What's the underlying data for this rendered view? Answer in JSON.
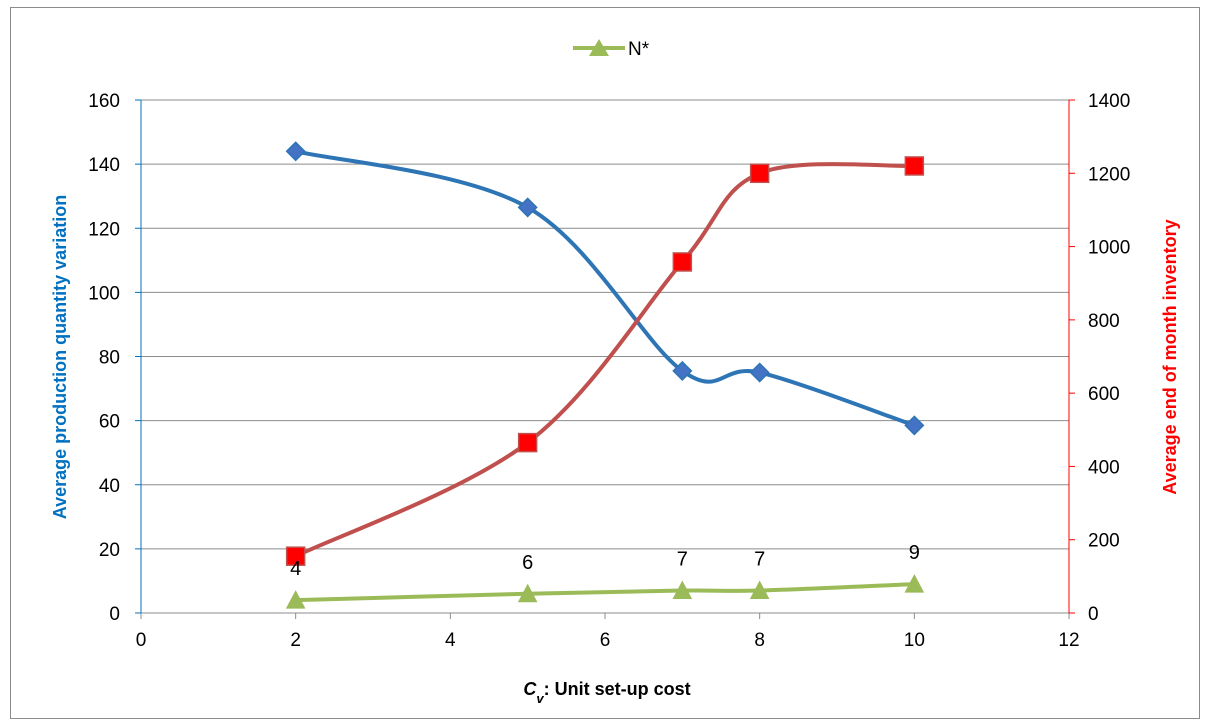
{
  "chart_data": {
    "type": "line",
    "title": "",
    "xlabel": {
      "symbol": "C",
      "subscript": "v",
      "text": ": Unit set-up cost"
    },
    "ylabel_left": "Average production quantity variation",
    "ylabel_right": "Average end of month inventory",
    "xlim": [
      0,
      12
    ],
    "xticks": [
      0,
      2,
      4,
      6,
      8,
      10,
      12
    ],
    "ylim_left": [
      0,
      160
    ],
    "yticks_left": [
      0,
      20,
      40,
      60,
      80,
      100,
      120,
      140,
      160
    ],
    "ylim_right": [
      0,
      1400
    ],
    "yticks_right": [
      0,
      200,
      400,
      600,
      800,
      1000,
      1200,
      1400
    ],
    "grid": "horizontal",
    "legend_position": "top",
    "series": [
      {
        "name": "",
        "axis": "left",
        "color": "#2e75b6",
        "marker": "diamond",
        "marker_color": "#4472c4",
        "smooth": true,
        "x": [
          2,
          5,
          7,
          8,
          10
        ],
        "y": [
          144,
          126.5,
          75.5,
          75,
          58.5
        ]
      },
      {
        "name": "",
        "axis": "right",
        "color": "#c0504d",
        "marker": "square",
        "marker_color": "#ff0000",
        "smooth": true,
        "x": [
          2,
          5,
          7,
          8,
          10
        ],
        "y": [
          155,
          465,
          958,
          1200,
          1220
        ]
      },
      {
        "name": "N*",
        "axis": "left",
        "color": "#9bbb59",
        "marker": "triangle",
        "marker_color": "#9bbb59",
        "smooth": true,
        "x": [
          2,
          5,
          7,
          8,
          10
        ],
        "y": [
          4,
          6,
          7,
          7,
          9
        ],
        "data_labels": [
          "4",
          "6",
          "7",
          "7",
          "9"
        ]
      }
    ],
    "left_axis_color": "#0070c0",
    "right_axis_color": "#ff0000"
  }
}
